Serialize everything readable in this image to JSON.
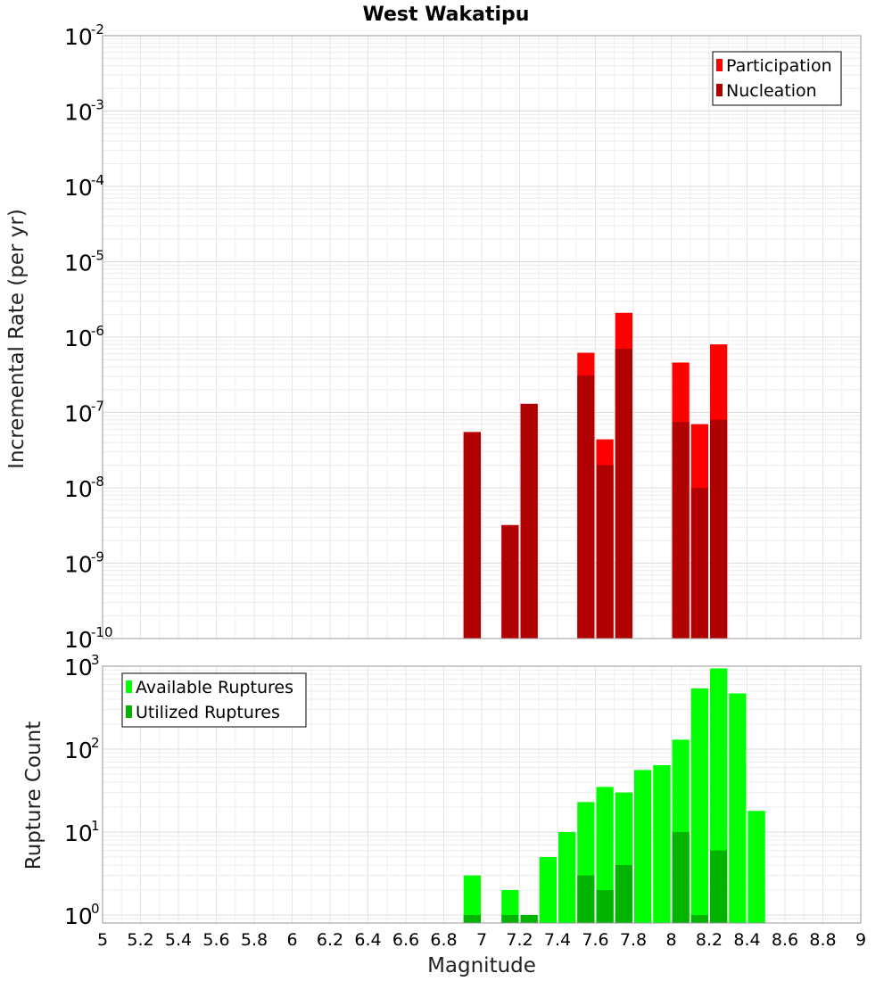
{
  "chart_data": [
    {
      "type": "bar",
      "title": "West Wakatipu",
      "ylabel": "Incremental Rate (per yr)",
      "xlabel": "",
      "yscale": "log",
      "ylim": [
        1e-10,
        0.01
      ],
      "xlim": [
        5,
        9
      ],
      "bar_width": 0.1,
      "grid": true,
      "legend": {
        "position": "top-right",
        "entries": [
          "Participation",
          "Nucleation"
        ]
      },
      "ytick_exponents": [
        -2,
        -3,
        -4,
        -5,
        -6,
        -7,
        -8,
        -9,
        -10
      ],
      "series": [
        {
          "name": "Participation",
          "color": "#ff0000",
          "x": [
            6.95,
            7.15,
            7.25,
            7.55,
            7.65,
            7.75,
            8.05,
            8.15,
            8.25
          ],
          "values": [
            5.5e-08,
            3.2e-09,
            1.3e-07,
            6.2e-07,
            4.4e-08,
            2.1e-06,
            4.6e-07,
            7e-08,
            8e-07
          ]
        },
        {
          "name": "Nucleation",
          "color": "#b00000",
          "x": [
            6.95,
            7.15,
            7.25,
            7.55,
            7.65,
            7.75,
            8.05,
            8.15,
            8.25
          ],
          "values": [
            5.5e-08,
            3.2e-09,
            1.3e-07,
            3.1e-07,
            2e-08,
            7e-07,
            7.5e-08,
            1e-08,
            8e-08
          ]
        }
      ]
    },
    {
      "type": "bar",
      "title": "",
      "ylabel": "Rupture Count",
      "xlabel": "Magnitude",
      "yscale": "log",
      "ylim": [
        0.8,
        1000
      ],
      "xlim": [
        5,
        9
      ],
      "bar_width": 0.1,
      "grid": true,
      "legend": {
        "position": "top-left",
        "entries": [
          "Available Ruptures",
          "Utilized Ruptures"
        ]
      },
      "ytick_exponents": [
        3,
        2,
        1,
        0
      ],
      "xticks": [
        "5",
        "5.2",
        "5.4",
        "5.6",
        "5.8",
        "6",
        "6.2",
        "6.4",
        "6.6",
        "6.8",
        "7",
        "7.2",
        "7.4",
        "7.6",
        "7.8",
        "8",
        "8.2",
        "8.4",
        "8.6",
        "8.8",
        "9"
      ],
      "series": [
        {
          "name": "Available Ruptures",
          "color": "#00ff00",
          "x": [
            6.95,
            7.15,
            7.25,
            7.35,
            7.45,
            7.55,
            7.65,
            7.75,
            7.85,
            7.95,
            8.05,
            8.15,
            8.25,
            8.35,
            8.45
          ],
          "values": [
            3,
            2,
            1,
            5,
            10,
            23,
            35,
            30,
            56,
            64,
            130,
            540,
            940,
            470,
            18
          ]
        },
        {
          "name": "Utilized Ruptures",
          "color": "#00b400",
          "x": [
            6.95,
            7.15,
            7.25,
            7.55,
            7.65,
            7.75,
            8.05,
            8.15,
            8.25
          ],
          "values": [
            1,
            1,
            1,
            3,
            2,
            4,
            10,
            1,
            6
          ]
        }
      ]
    }
  ]
}
